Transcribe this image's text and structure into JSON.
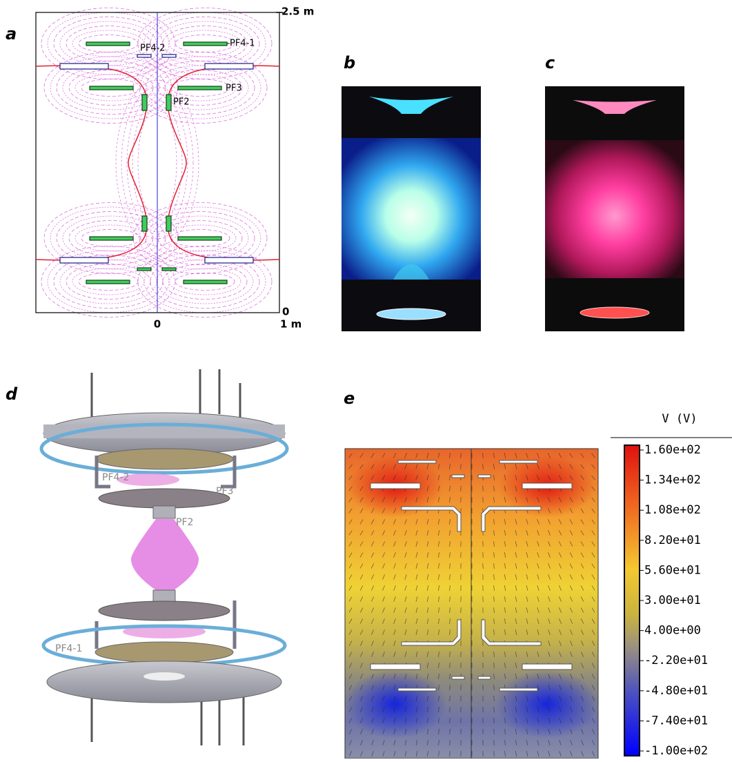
{
  "panel_a": {
    "label": "a",
    "axis": {
      "top": "2.5 m",
      "bottom": "0",
      "x_zero": "0",
      "x_right": "1 m"
    },
    "coils": [
      "PF4-2",
      "PF4-1",
      "PF3",
      "PF2"
    ]
  },
  "panel_b": {
    "label": "b"
  },
  "panel_c": {
    "label": "c"
  },
  "panel_d": {
    "label": "d",
    "coils": [
      "PF4-2",
      "PF3",
      "PF2",
      "PF4-1"
    ]
  },
  "panel_e": {
    "label": "e",
    "colorbar_title": "V (V)",
    "colorbar_labels": [
      "1.60e+02",
      "1.34e+02",
      "1.08e+02",
      "8.20e+01",
      "5.60e+01",
      "3.00e+01",
      "4.00e+00",
      "-2.20e+01",
      "-4.80e+01",
      "-7.40e+01",
      "-1.00e+02"
    ]
  }
}
